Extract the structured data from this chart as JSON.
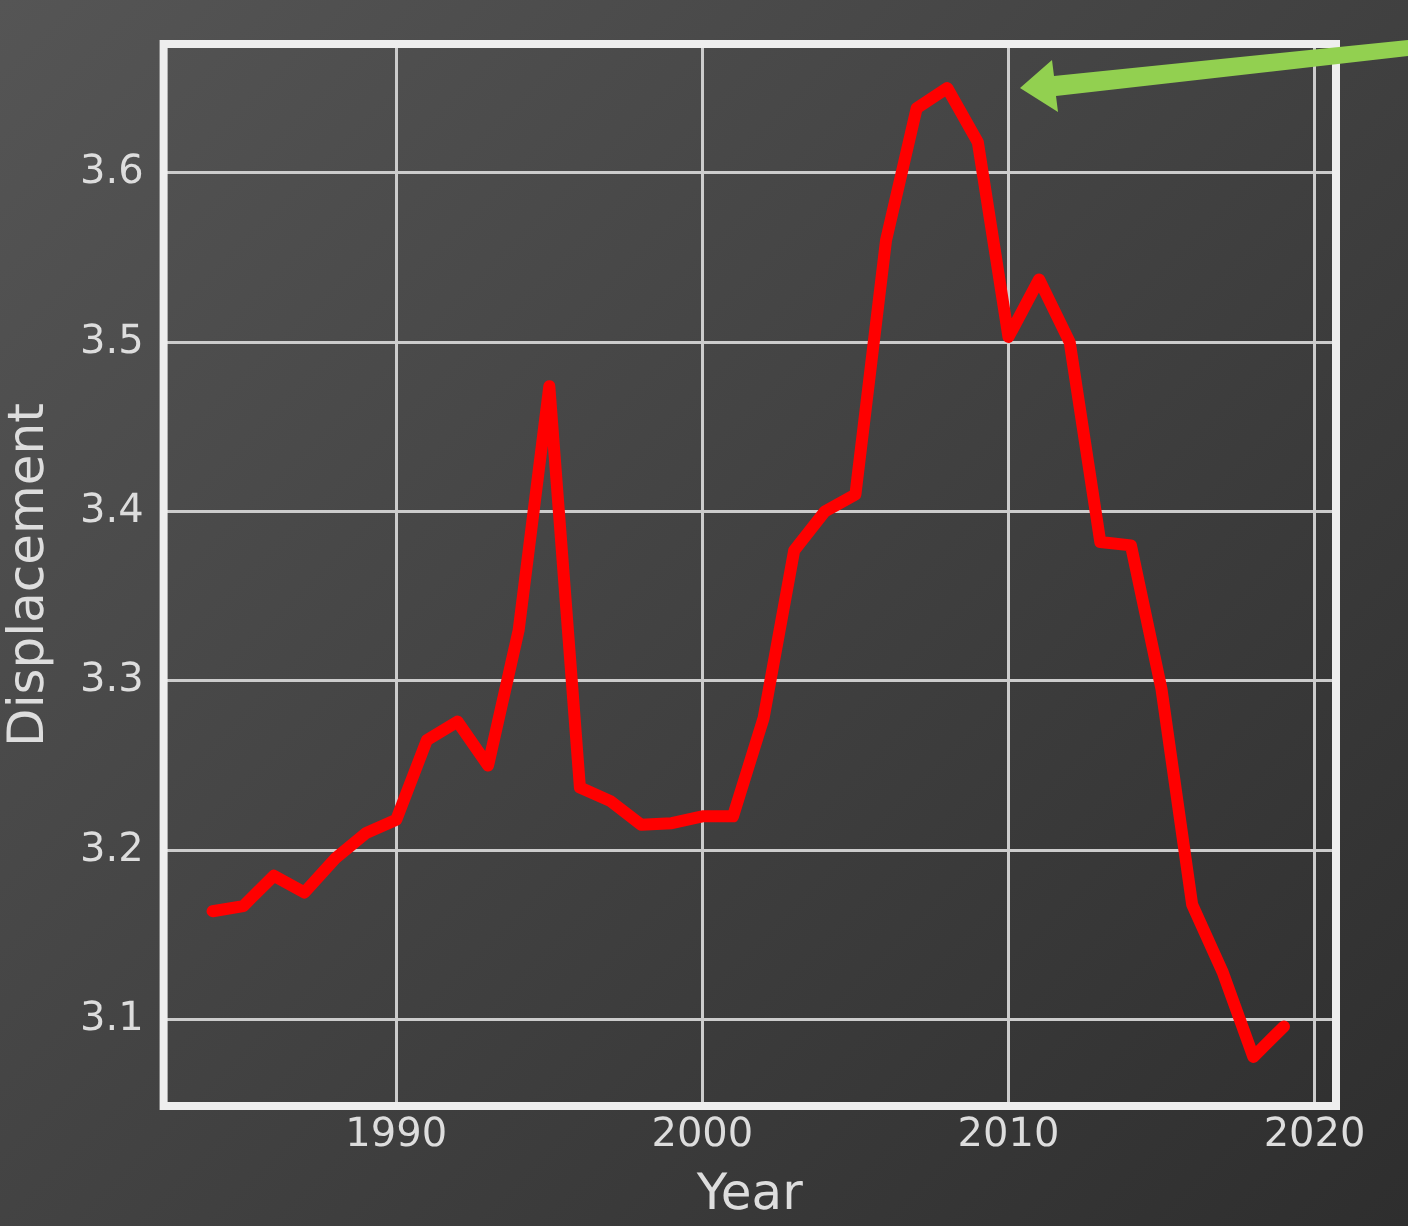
{
  "chart_data": {
    "type": "line",
    "xlabel": "Year",
    "ylabel": "Displacement",
    "x": [
      1984,
      1985,
      1986,
      1987,
      1988,
      1989,
      1990,
      1991,
      1992,
      1993,
      1994,
      1995,
      1996,
      1997,
      1998,
      1999,
      2000,
      2001,
      2002,
      2003,
      2004,
      2005,
      2006,
      2007,
      2008,
      2009,
      2010,
      2011,
      2012,
      2013,
      2014,
      2015,
      2016,
      2017,
      2018,
      2019
    ],
    "series": [
      {
        "color": "#ff0000",
        "values": [
          3.164,
          3.167,
          3.185,
          3.175,
          3.195,
          3.21,
          3.218,
          3.265,
          3.276,
          3.25,
          3.33,
          3.474,
          3.237,
          3.229,
          3.215,
          3.216,
          3.22,
          3.22,
          3.278,
          3.377,
          3.4,
          3.41,
          3.56,
          3.638,
          3.65,
          3.618,
          3.503,
          3.537,
          3.5,
          3.382,
          3.38,
          3.295,
          3.168,
          3.128,
          3.078,
          3.096
        ]
      }
    ],
    "xlim": [
      1982.4,
      2020.7
    ],
    "xticks": [
      1990,
      2000,
      2010,
      2020
    ],
    "ylim": [
      3.049,
      3.676
    ],
    "yticks": [
      3.1,
      3.2,
      3.3,
      3.4,
      3.5,
      3.6
    ],
    "grid": true,
    "legend": false,
    "marker": "none",
    "line_style": "solid"
  }
}
